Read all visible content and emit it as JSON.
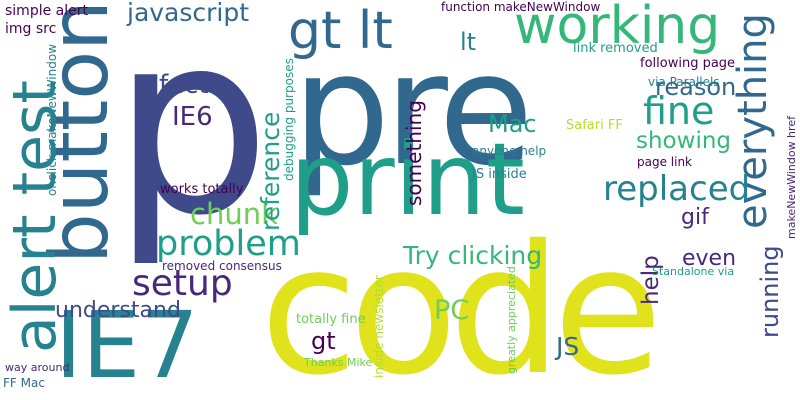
{
  "palette": {
    "dark_purple": "#440154",
    "indigo": "#482878",
    "slate_blue": "#3e4a89",
    "steel_blue": "#31688e",
    "teal_blue": "#26828e",
    "teal": "#1f9e89",
    "green_teal": "#35b779",
    "green": "#6ece58",
    "lime": "#b5de2b",
    "yellow": "#e0e21b"
  },
  "words": [
    {
      "text": "p",
      "color": "slate_blue",
      "vertical": false
    },
    {
      "text": "pre",
      "color": "steel_blue",
      "vertical": false
    },
    {
      "text": "code",
      "color": "yellow",
      "vertical": false
    },
    {
      "text": "print",
      "color": "teal",
      "vertical": false
    },
    {
      "text": "button",
      "color": "steel_blue",
      "vertical": true
    },
    {
      "text": "IE7",
      "color": "teal_blue",
      "vertical": false
    },
    {
      "text": "alert test",
      "color": "teal_blue",
      "vertical": true
    },
    {
      "text": "working",
      "color": "green_teal",
      "vertical": false
    },
    {
      "text": "gt lt",
      "color": "steel_blue",
      "vertical": false
    },
    {
      "text": "everything",
      "color": "steel_blue",
      "vertical": true
    },
    {
      "text": "problem",
      "color": "teal",
      "vertical": false
    },
    {
      "text": "setup",
      "color": "indigo",
      "vertical": false
    },
    {
      "text": "replaced",
      "color": "teal_blue",
      "vertical": false
    },
    {
      "text": "fine",
      "color": "teal",
      "vertical": false
    },
    {
      "text": "chunk",
      "color": "green",
      "vertical": false
    },
    {
      "text": "javascript",
      "color": "steel_blue",
      "vertical": false
    },
    {
      "text": "reference",
      "color": "teal",
      "vertical": true
    },
    {
      "text": "understand",
      "color": "slate_blue",
      "vertical": false
    },
    {
      "text": "fact",
      "color": "slate_blue",
      "vertical": false
    },
    {
      "text": "IE6",
      "color": "indigo",
      "vertical": false
    },
    {
      "text": "Try clicking",
      "color": "green_teal",
      "vertical": false
    },
    {
      "text": "Mac",
      "color": "teal",
      "vertical": false
    },
    {
      "text": "reason",
      "color": "steel_blue",
      "vertical": false
    },
    {
      "text": "showing",
      "color": "green_teal",
      "vertical": false
    },
    {
      "text": "something",
      "color": "dark_purple",
      "vertical": true
    },
    {
      "text": "gif",
      "color": "indigo",
      "vertical": false
    },
    {
      "text": "running",
      "color": "slate_blue",
      "vertical": true
    },
    {
      "text": "help",
      "color": "indigo",
      "vertical": true
    },
    {
      "text": "even",
      "color": "indigo",
      "vertical": false
    },
    {
      "text": "PC",
      "color": "green",
      "vertical": false
    },
    {
      "text": "JS",
      "color": "steel_blue",
      "vertical": false
    },
    {
      "text": "gt",
      "color": "dark_purple",
      "vertical": false
    },
    {
      "text": "lt",
      "color": "teal_blue",
      "vertical": false
    },
    {
      "text": "simple alert",
      "color": "dark_purple",
      "vertical": false
    },
    {
      "text": "img src",
      "color": "dark_purple",
      "vertical": false
    },
    {
      "text": "onclick makeNewWindow",
      "color": "teal_blue",
      "vertical": true
    },
    {
      "text": "function makeNewWindow",
      "color": "dark_purple",
      "vertical": false
    },
    {
      "text": "link removed",
      "color": "teal",
      "vertical": false
    },
    {
      "text": "following page",
      "color": "dark_purple",
      "vertical": false
    },
    {
      "text": "via Parallels",
      "color": "teal_blue",
      "vertical": false
    },
    {
      "text": "Safari FF",
      "color": "lime",
      "vertical": false
    },
    {
      "text": "anyone help",
      "color": "teal_blue",
      "vertical": false
    },
    {
      "text": "page link",
      "color": "dark_purple",
      "vertical": false
    },
    {
      "text": "JS inside",
      "color": "teal_blue",
      "vertical": false
    },
    {
      "text": "debugging purposes",
      "color": "teal",
      "vertical": true
    },
    {
      "text": "works totally",
      "color": "dark_purple",
      "vertical": false
    },
    {
      "text": "removed consensus",
      "color": "indigo",
      "vertical": false
    },
    {
      "text": "Standalone via",
      "color": "teal",
      "vertical": false
    },
    {
      "text": "inside newsletter",
      "color": "lime",
      "vertical": true
    },
    {
      "text": "makeNewWindow href",
      "color": "indigo",
      "vertical": true
    },
    {
      "text": "totally fine",
      "color": "green",
      "vertical": false
    },
    {
      "text": "greatly appreciated",
      "color": "green",
      "vertical": true
    },
    {
      "text": "Thanks Mike",
      "color": "green",
      "vertical": false
    },
    {
      "text": "way around",
      "color": "indigo",
      "vertical": false
    },
    {
      "text": "FF Mac",
      "color": "steel_blue",
      "vertical": false
    }
  ]
}
